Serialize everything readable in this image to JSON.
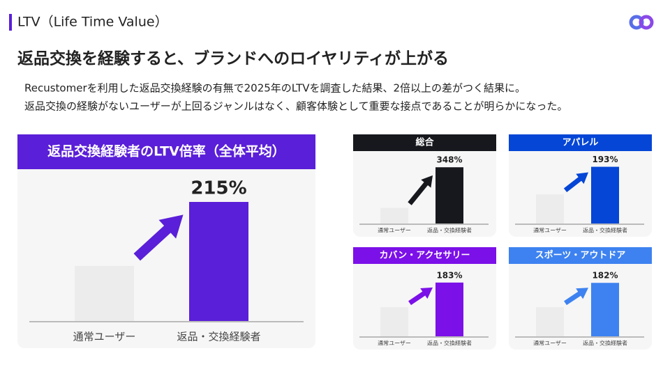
{
  "header": {
    "section": "LTV（Life Time Value）",
    "title": "返品交換を経験すると、ブランドへのロイヤリティが上がる",
    "lines": [
      "Recustomerを利用した返品交換経験の有無で2025年のLTVを調査した結果、2倍以上の差がつく結果に。",
      "返品交換の経験がないユーザーが上回るジャンルはなく、顧客体験として重要な接点であることが明らかになった。"
    ]
  },
  "chart_data": [
    {
      "type": "bar",
      "title": "返品交換経験者のLTV倍率（全体平均）",
      "categories": [
        "通常ユーザー",
        "返品・交換経験者"
      ],
      "values": [
        100,
        215
      ],
      "value_labels": [
        null,
        "215%"
      ],
      "colors": [
        "#ececec",
        "#5a1fd8"
      ],
      "ylim": [
        0,
        240
      ]
    },
    {
      "type": "bar",
      "title": "総合",
      "categories": [
        "通常ユーザー",
        "返品・交換経験者"
      ],
      "values": [
        100,
        348
      ],
      "value_labels": [
        null,
        "348%"
      ],
      "colors": [
        "#ececec",
        "#16181d"
      ],
      "ylim": [
        0,
        400
      ]
    },
    {
      "type": "bar",
      "title": "アパレル",
      "categories": [
        "通常ユーザー",
        "返品・交換経験者"
      ],
      "values": [
        100,
        193
      ],
      "value_labels": [
        null,
        "193%"
      ],
      "colors": [
        "#ececec",
        "#0546d6"
      ],
      "ylim": [
        0,
        220
      ]
    },
    {
      "type": "bar",
      "title": "カバン・アクセサリー",
      "categories": [
        "通常ユーザー",
        "返品・交換経験者"
      ],
      "values": [
        100,
        183
      ],
      "value_labels": [
        null,
        "183%"
      ],
      "colors": [
        "#ececec",
        "#7b10e8"
      ],
      "ylim": [
        0,
        220
      ]
    },
    {
      "type": "bar",
      "title": "スポーツ・アウトドア",
      "categories": [
        "通常ユーザー",
        "返品・交換経験者"
      ],
      "values": [
        100,
        182
      ],
      "value_labels": [
        null,
        "182%"
      ],
      "colors": [
        "#ececec",
        "#3d82f0"
      ],
      "ylim": [
        0,
        220
      ]
    }
  ]
}
